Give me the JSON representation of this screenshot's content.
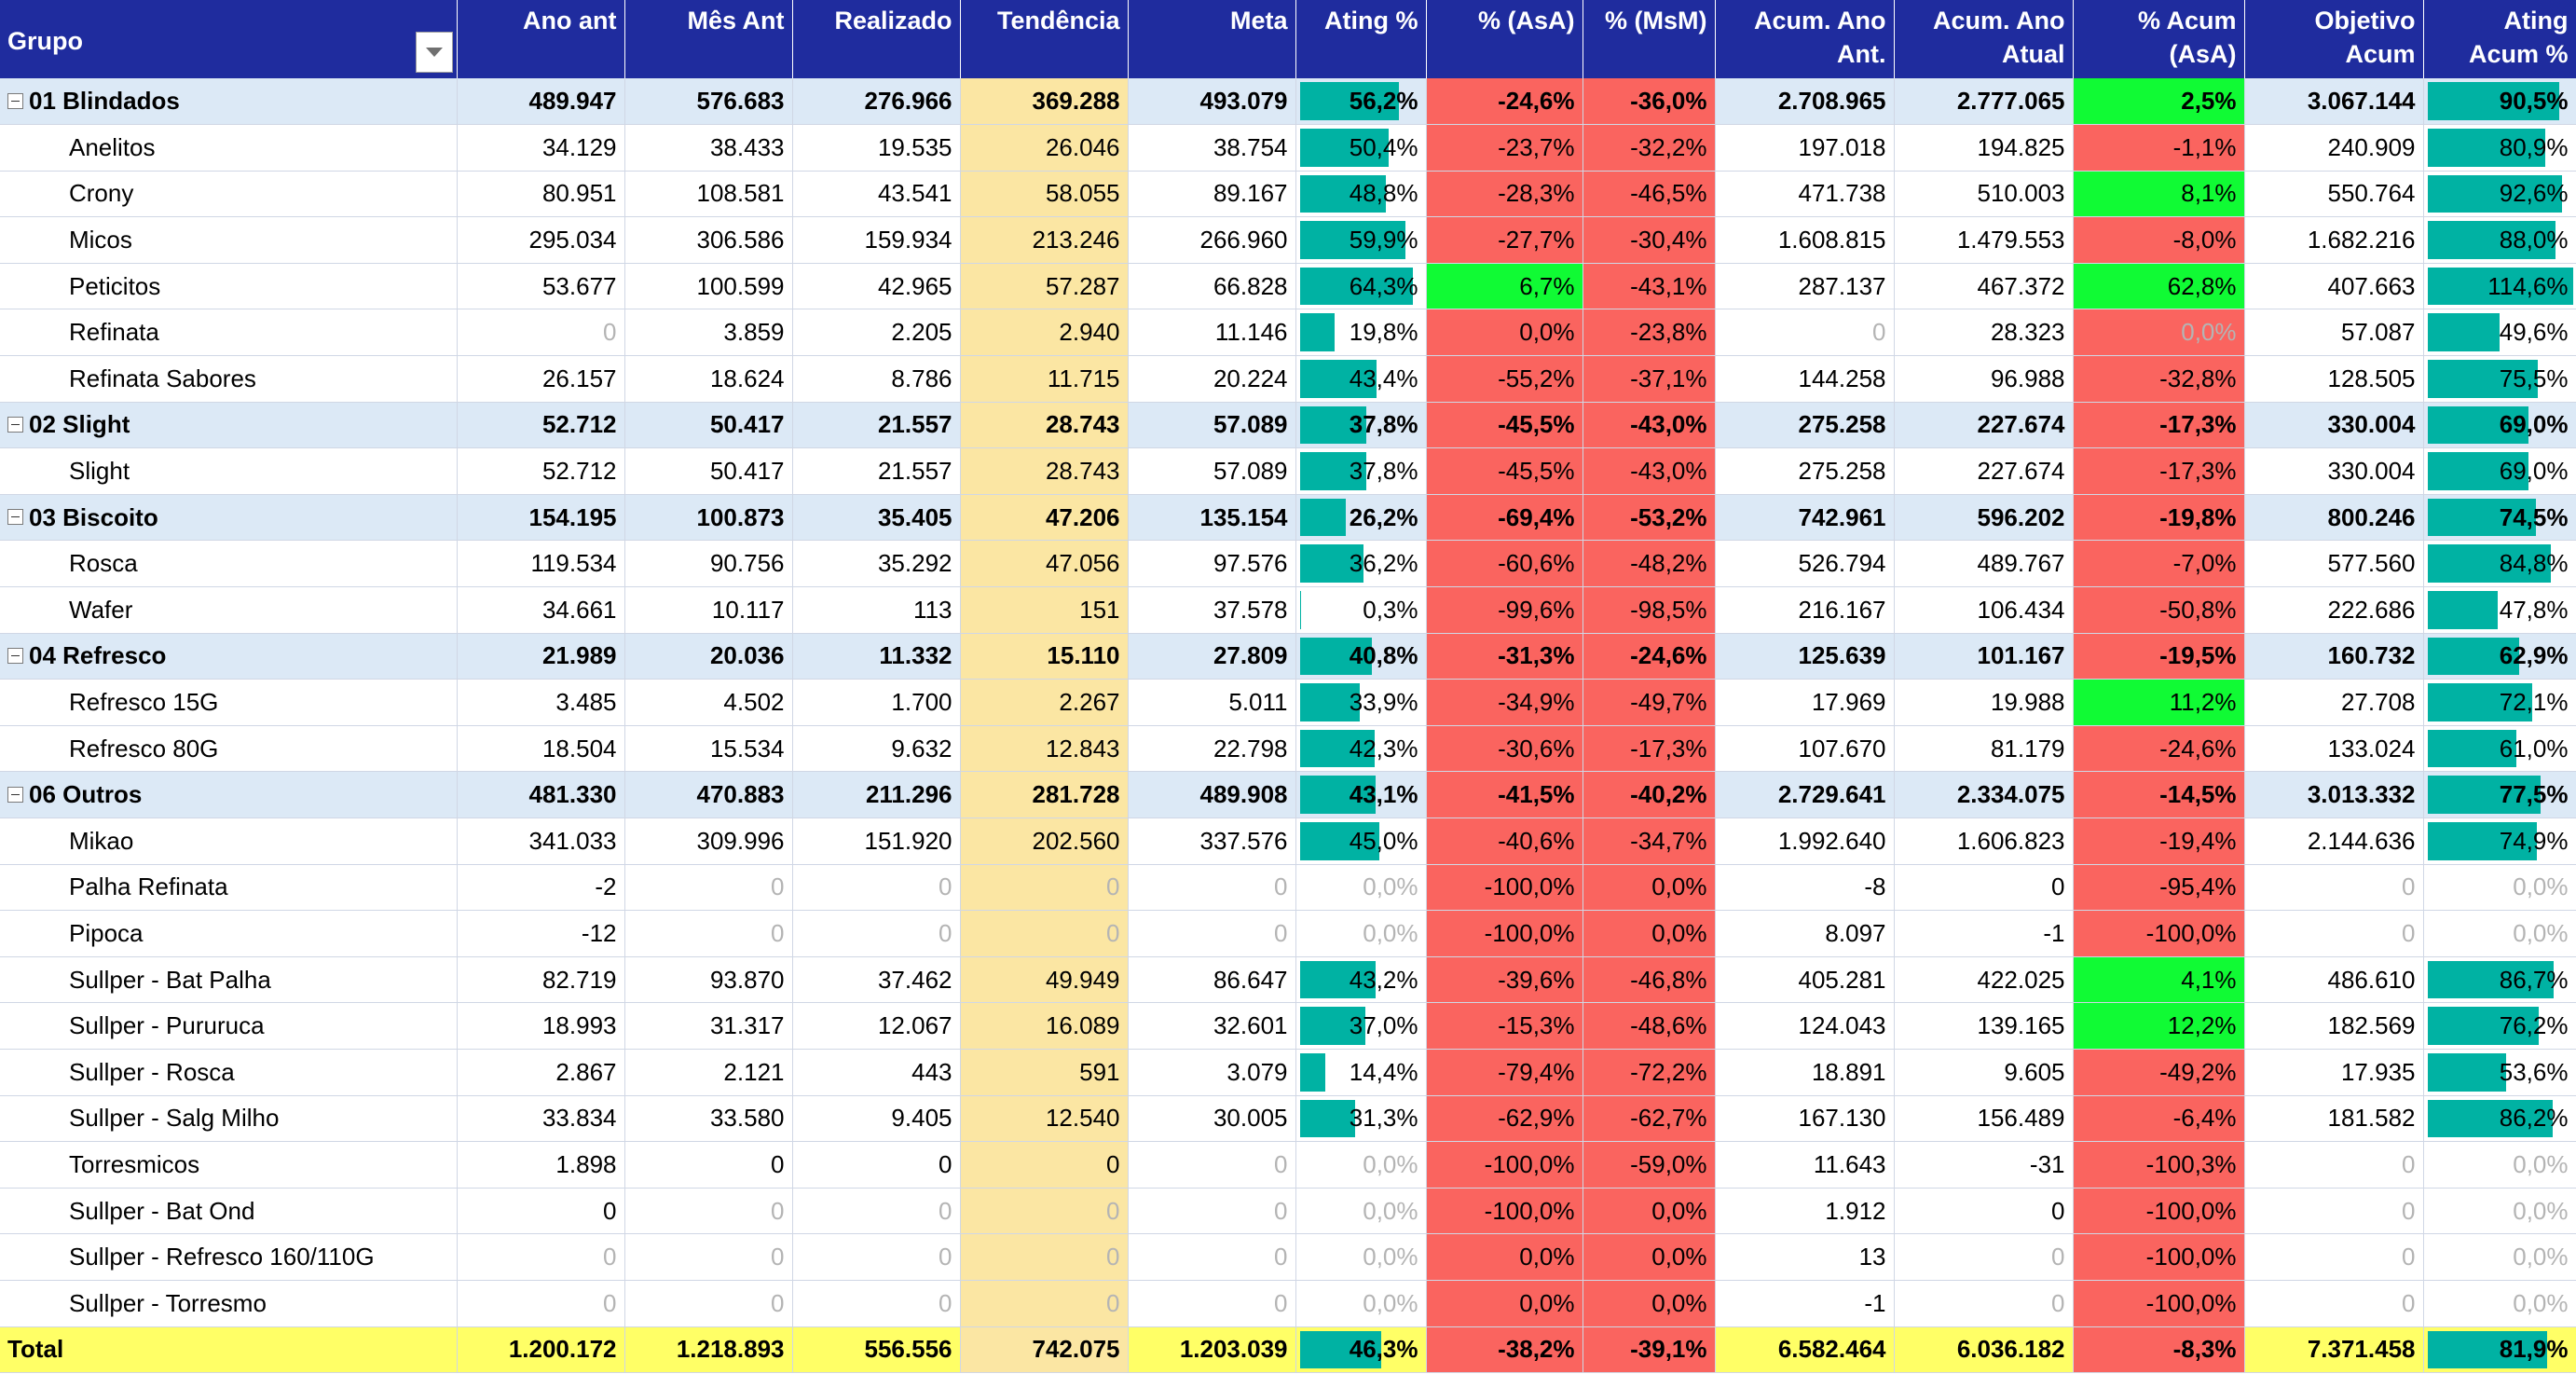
{
  "headers": {
    "grupo": "Grupo",
    "ano_ant": "Ano ant",
    "mes_ant": "Mês Ant",
    "realizado": "Realizado",
    "tendencia": "Tendência",
    "meta": "Meta",
    "ating": "Ating %",
    "asa": "% (AsA)",
    "msm": "% (MsM)",
    "acum_ano_ant": "Acum. Ano Ant.",
    "acum_ano_atual": "Acum. Ano Atual",
    "acum_asa": "% Acum (AsA)",
    "objetivo_acum": "Objetivo Acum",
    "ating_acum": "Ating Acum %"
  },
  "colors": {
    "header_bg": "#1f2c9e",
    "group_row_bg": "#dce9f6",
    "trend_bg": "#fbe6a3",
    "negative_bg": "#fa645f",
    "positive_bg": "#10fb34",
    "bar_fill": "#00b2a3",
    "total_bg": "#ffff66"
  },
  "icons": {
    "filter": "filter-dropdown-icon",
    "collapse": "collapse-minus-icon"
  },
  "rows": [
    {
      "type": "group",
      "name": "01 Blindados",
      "ano_ant": "489.947",
      "mes_ant": "576.683",
      "realizado": "276.966",
      "tendencia": "369.288",
      "meta": "493.079",
      "ating": "56,2%",
      "ating_level": 0.562,
      "asa": "-24,6%",
      "asa_color": "red",
      "msm": "-36,0%",
      "msm_color": "red",
      "acum_ano_ant": "2.708.965",
      "acum_ano_atual": "2.777.065",
      "acum_asa": "2,5%",
      "acum_asa_color": "green",
      "objetivo_acum": "3.067.144",
      "ating_acum": "90,5%",
      "ating_acum_level": 0.905
    },
    {
      "type": "item",
      "name": "Anelitos",
      "ano_ant": "34.129",
      "mes_ant": "38.433",
      "realizado": "19.535",
      "tendencia": "26.046",
      "meta": "38.754",
      "ating": "50,4%",
      "ating_level": 0.504,
      "asa": "-23,7%",
      "asa_color": "red",
      "msm": "-32,2%",
      "msm_color": "red",
      "acum_ano_ant": "197.018",
      "acum_ano_atual": "194.825",
      "acum_asa": "-1,1%",
      "acum_asa_color": "red",
      "objetivo_acum": "240.909",
      "ating_acum": "80,9%",
      "ating_acum_level": 0.809
    },
    {
      "type": "item",
      "name": "Crony",
      "ano_ant": "80.951",
      "mes_ant": "108.581",
      "realizado": "43.541",
      "tendencia": "58.055",
      "meta": "89.167",
      "ating": "48,8%",
      "ating_level": 0.488,
      "asa": "-28,3%",
      "asa_color": "red",
      "msm": "-46,5%",
      "msm_color": "red",
      "acum_ano_ant": "471.738",
      "acum_ano_atual": "510.003",
      "acum_asa": "8,1%",
      "acum_asa_color": "green",
      "objetivo_acum": "550.764",
      "ating_acum": "92,6%",
      "ating_acum_level": 0.926
    },
    {
      "type": "item",
      "name": "Micos",
      "ano_ant": "295.034",
      "mes_ant": "306.586",
      "realizado": "159.934",
      "tendencia": "213.246",
      "meta": "266.960",
      "ating": "59,9%",
      "ating_level": 0.599,
      "asa": "-27,7%",
      "asa_color": "red",
      "msm": "-30,4%",
      "msm_color": "red",
      "acum_ano_ant": "1.608.815",
      "acum_ano_atual": "1.479.553",
      "acum_asa": "-8,0%",
      "acum_asa_color": "red",
      "objetivo_acum": "1.682.216",
      "ating_acum": "88,0%",
      "ating_acum_level": 0.88
    },
    {
      "type": "item",
      "name": "Peticitos",
      "ano_ant": "53.677",
      "mes_ant": "100.599",
      "realizado": "42.965",
      "tendencia": "57.287",
      "meta": "66.828",
      "ating": "64,3%",
      "ating_level": 0.643,
      "asa": "6,7%",
      "asa_color": "green",
      "msm": "-43,1%",
      "msm_color": "red",
      "acum_ano_ant": "287.137",
      "acum_ano_atual": "467.372",
      "acum_asa": "62,8%",
      "acum_asa_color": "green",
      "objetivo_acum": "407.663",
      "ating_acum": "114,6%",
      "ating_acum_level": 1.146
    },
    {
      "type": "item",
      "name": "Refinata",
      "ano_ant": "0",
      "ano_ant_muted": true,
      "mes_ant": "3.859",
      "realizado": "2.205",
      "tendencia": "2.940",
      "meta": "11.146",
      "ating": "19,8%",
      "ating_level": 0.198,
      "asa": "0,0%",
      "asa_color": "red",
      "msm": "-23,8%",
      "msm_color": "red",
      "acum_ano_ant": "0",
      "acum_ano_ant_muted": true,
      "acum_ano_atual": "28.323",
      "acum_asa": "0,0%",
      "acum_asa_color": "red",
      "acum_asa_muted": true,
      "objetivo_acum": "57.087",
      "ating_acum": "49,6%",
      "ating_acum_level": 0.496
    },
    {
      "type": "item",
      "name": "Refinata Sabores",
      "ano_ant": "26.157",
      "mes_ant": "18.624",
      "realizado": "8.786",
      "tendencia": "11.715",
      "meta": "20.224",
      "ating": "43,4%",
      "ating_level": 0.434,
      "asa": "-55,2%",
      "asa_color": "red",
      "msm": "-37,1%",
      "msm_color": "red",
      "acum_ano_ant": "144.258",
      "acum_ano_atual": "96.988",
      "acum_asa": "-32,8%",
      "acum_asa_color": "red",
      "objetivo_acum": "128.505",
      "ating_acum": "75,5%",
      "ating_acum_level": 0.755
    },
    {
      "type": "group",
      "name": "02 Slight",
      "ano_ant": "52.712",
      "mes_ant": "50.417",
      "realizado": "21.557",
      "tendencia": "28.743",
      "meta": "57.089",
      "ating": "37,8%",
      "ating_level": 0.378,
      "asa": "-45,5%",
      "asa_color": "red",
      "msm": "-43,0%",
      "msm_color": "red",
      "acum_ano_ant": "275.258",
      "acum_ano_atual": "227.674",
      "acum_asa": "-17,3%",
      "acum_asa_color": "red",
      "objetivo_acum": "330.004",
      "ating_acum": "69,0%",
      "ating_acum_level": 0.69
    },
    {
      "type": "item",
      "name": "Slight",
      "ano_ant": "52.712",
      "mes_ant": "50.417",
      "realizado": "21.557",
      "tendencia": "28.743",
      "meta": "57.089",
      "ating": "37,8%",
      "ating_level": 0.378,
      "asa": "-45,5%",
      "asa_color": "red",
      "msm": "-43,0%",
      "msm_color": "red",
      "acum_ano_ant": "275.258",
      "acum_ano_atual": "227.674",
      "acum_asa": "-17,3%",
      "acum_asa_color": "red",
      "objetivo_acum": "330.004",
      "ating_acum": "69,0%",
      "ating_acum_level": 0.69
    },
    {
      "type": "group",
      "name": "03 Biscoito",
      "ano_ant": "154.195",
      "mes_ant": "100.873",
      "realizado": "35.405",
      "tendencia": "47.206",
      "meta": "135.154",
      "ating": "26,2%",
      "ating_level": 0.262,
      "asa": "-69,4%",
      "asa_color": "red",
      "msm": "-53,2%",
      "msm_color": "red",
      "acum_ano_ant": "742.961",
      "acum_ano_atual": "596.202",
      "acum_asa": "-19,8%",
      "acum_asa_color": "red",
      "objetivo_acum": "800.246",
      "ating_acum": "74,5%",
      "ating_acum_level": 0.745
    },
    {
      "type": "item",
      "name": "Rosca",
      "ano_ant": "119.534",
      "mes_ant": "90.756",
      "realizado": "35.292",
      "tendencia": "47.056",
      "meta": "97.576",
      "ating": "36,2%",
      "ating_level": 0.362,
      "asa": "-60,6%",
      "asa_color": "red",
      "msm": "-48,2%",
      "msm_color": "red",
      "acum_ano_ant": "526.794",
      "acum_ano_atual": "489.767",
      "acum_asa": "-7,0%",
      "acum_asa_color": "red",
      "objetivo_acum": "577.560",
      "ating_acum": "84,8%",
      "ating_acum_level": 0.848
    },
    {
      "type": "item",
      "name": "Wafer",
      "ano_ant": "34.661",
      "mes_ant": "10.117",
      "realizado": "113",
      "tendencia": "151",
      "meta": "37.578",
      "ating": "0,3%",
      "ating_level": 0.003,
      "asa": "-99,6%",
      "asa_color": "red",
      "msm": "-98,5%",
      "msm_color": "red",
      "acum_ano_ant": "216.167",
      "acum_ano_atual": "106.434",
      "acum_asa": "-50,8%",
      "acum_asa_color": "red",
      "objetivo_acum": "222.686",
      "ating_acum": "47,8%",
      "ating_acum_level": 0.478
    },
    {
      "type": "group",
      "name": "04 Refresco",
      "ano_ant": "21.989",
      "mes_ant": "20.036",
      "realizado": "11.332",
      "tendencia": "15.110",
      "meta": "27.809",
      "ating": "40,8%",
      "ating_level": 0.408,
      "asa": "-31,3%",
      "asa_color": "red",
      "msm": "-24,6%",
      "msm_color": "red",
      "acum_ano_ant": "125.639",
      "acum_ano_atual": "101.167",
      "acum_asa": "-19,5%",
      "acum_asa_color": "red",
      "objetivo_acum": "160.732",
      "ating_acum": "62,9%",
      "ating_acum_level": 0.629
    },
    {
      "type": "item",
      "name": "Refresco 15G",
      "ano_ant": "3.485",
      "mes_ant": "4.502",
      "realizado": "1.700",
      "tendencia": "2.267",
      "meta": "5.011",
      "ating": "33,9%",
      "ating_level": 0.339,
      "asa": "-34,9%",
      "asa_color": "red",
      "msm": "-49,7%",
      "msm_color": "red",
      "acum_ano_ant": "17.969",
      "acum_ano_atual": "19.988",
      "acum_asa": "11,2%",
      "acum_asa_color": "green",
      "objetivo_acum": "27.708",
      "ating_acum": "72,1%",
      "ating_acum_level": 0.721
    },
    {
      "type": "item",
      "name": "Refresco 80G",
      "ano_ant": "18.504",
      "mes_ant": "15.534",
      "realizado": "9.632",
      "tendencia": "12.843",
      "meta": "22.798",
      "ating": "42,3%",
      "ating_level": 0.423,
      "asa": "-30,6%",
      "asa_color": "red",
      "msm": "-17,3%",
      "msm_color": "red",
      "acum_ano_ant": "107.670",
      "acum_ano_atual": "81.179",
      "acum_asa": "-24,6%",
      "acum_asa_color": "red",
      "objetivo_acum": "133.024",
      "ating_acum": "61,0%",
      "ating_acum_level": 0.61
    },
    {
      "type": "group",
      "name": "06 Outros",
      "ano_ant": "481.330",
      "mes_ant": "470.883",
      "realizado": "211.296",
      "tendencia": "281.728",
      "meta": "489.908",
      "ating": "43,1%",
      "ating_level": 0.431,
      "asa": "-41,5%",
      "asa_color": "red",
      "msm": "-40,2%",
      "msm_color": "red",
      "acum_ano_ant": "2.729.641",
      "acum_ano_atual": "2.334.075",
      "acum_asa": "-14,5%",
      "acum_asa_color": "red",
      "objetivo_acum": "3.013.332",
      "ating_acum": "77,5%",
      "ating_acum_level": 0.775
    },
    {
      "type": "item",
      "name": "Mikao",
      "ano_ant": "341.033",
      "mes_ant": "309.996",
      "realizado": "151.920",
      "tendencia": "202.560",
      "meta": "337.576",
      "ating": "45,0%",
      "ating_level": 0.45,
      "asa": "-40,6%",
      "asa_color": "red",
      "msm": "-34,7%",
      "msm_color": "red",
      "acum_ano_ant": "1.992.640",
      "acum_ano_atual": "1.606.823",
      "acum_asa": "-19,4%",
      "acum_asa_color": "red",
      "objetivo_acum": "2.144.636",
      "ating_acum": "74,9%",
      "ating_acum_level": 0.749
    },
    {
      "type": "item",
      "name": "Palha Refinata",
      "ano_ant": "-2",
      "mes_ant": "0",
      "mes_ant_muted": true,
      "realizado": "0",
      "realizado_muted": true,
      "tendencia": "0",
      "tendencia_muted": true,
      "meta": "0",
      "meta_muted": true,
      "ating": "0,0%",
      "ating_level": 0,
      "ating_muted": true,
      "asa": "-100,0%",
      "asa_color": "red",
      "msm": "0,0%",
      "msm_color": "red",
      "acum_ano_ant": "-8",
      "acum_ano_atual": "0",
      "acum_asa": "-95,4%",
      "acum_asa_color": "red",
      "objetivo_acum": "0",
      "objetivo_acum_muted": true,
      "ating_acum": "0,0%",
      "ating_acum_level": 0,
      "ating_acum_muted": true
    },
    {
      "type": "item",
      "name": "Pipoca",
      "ano_ant": "-12",
      "mes_ant": "0",
      "mes_ant_muted": true,
      "realizado": "0",
      "realizado_muted": true,
      "tendencia": "0",
      "tendencia_muted": true,
      "meta": "0",
      "meta_muted": true,
      "ating": "0,0%",
      "ating_level": 0,
      "ating_muted": true,
      "asa": "-100,0%",
      "asa_color": "red",
      "msm": "0,0%",
      "msm_color": "red",
      "acum_ano_ant": "8.097",
      "acum_ano_atual": "-1",
      "acum_asa": "-100,0%",
      "acum_asa_color": "red",
      "objetivo_acum": "0",
      "objetivo_acum_muted": true,
      "ating_acum": "0,0%",
      "ating_acum_level": 0,
      "ating_acum_muted": true
    },
    {
      "type": "item",
      "name": "Sullper - Bat Palha",
      "ano_ant": "82.719",
      "mes_ant": "93.870",
      "realizado": "37.462",
      "tendencia": "49.949",
      "meta": "86.647",
      "ating": "43,2%",
      "ating_level": 0.432,
      "asa": "-39,6%",
      "asa_color": "red",
      "msm": "-46,8%",
      "msm_color": "red",
      "acum_ano_ant": "405.281",
      "acum_ano_atual": "422.025",
      "acum_asa": "4,1%",
      "acum_asa_color": "green",
      "objetivo_acum": "486.610",
      "ating_acum": "86,7%",
      "ating_acum_level": 0.867
    },
    {
      "type": "item",
      "name": "Sullper - Pururuca",
      "ano_ant": "18.993",
      "mes_ant": "31.317",
      "realizado": "12.067",
      "tendencia": "16.089",
      "meta": "32.601",
      "ating": "37,0%",
      "ating_level": 0.37,
      "asa": "-15,3%",
      "asa_color": "red",
      "msm": "-48,6%",
      "msm_color": "red",
      "acum_ano_ant": "124.043",
      "acum_ano_atual": "139.165",
      "acum_asa": "12,2%",
      "acum_asa_color": "green",
      "objetivo_acum": "182.569",
      "ating_acum": "76,2%",
      "ating_acum_level": 0.762
    },
    {
      "type": "item",
      "name": "Sullper - Rosca",
      "ano_ant": "2.867",
      "mes_ant": "2.121",
      "realizado": "443",
      "tendencia": "591",
      "meta": "3.079",
      "ating": "14,4%",
      "ating_level": 0.144,
      "asa": "-79,4%",
      "asa_color": "red",
      "msm": "-72,2%",
      "msm_color": "red",
      "acum_ano_ant": "18.891",
      "acum_ano_atual": "9.605",
      "acum_asa": "-49,2%",
      "acum_asa_color": "red",
      "objetivo_acum": "17.935",
      "ating_acum": "53,6%",
      "ating_acum_level": 0.536
    },
    {
      "type": "item",
      "name": "Sullper - Salg Milho",
      "ano_ant": "33.834",
      "mes_ant": "33.580",
      "realizado": "9.405",
      "tendencia": "12.540",
      "meta": "30.005",
      "ating": "31,3%",
      "ating_level": 0.313,
      "asa": "-62,9%",
      "asa_color": "red",
      "msm": "-62,7%",
      "msm_color": "red",
      "acum_ano_ant": "167.130",
      "acum_ano_atual": "156.489",
      "acum_asa": "-6,4%",
      "acum_asa_color": "red",
      "objetivo_acum": "181.582",
      "ating_acum": "86,2%",
      "ating_acum_level": 0.862
    },
    {
      "type": "item",
      "name": "Torresmicos",
      "ano_ant": "1.898",
      "mes_ant": "0",
      "realizado": "0",
      "tendencia": "0",
      "meta": "0",
      "meta_muted": true,
      "ating": "0,0%",
      "ating_level": 0,
      "ating_muted": true,
      "asa": "-100,0%",
      "asa_color": "red",
      "msm": "-59,0%",
      "msm_color": "red",
      "acum_ano_ant": "11.643",
      "acum_ano_atual": "-31",
      "acum_asa": "-100,3%",
      "acum_asa_color": "red",
      "objetivo_acum": "0",
      "objetivo_acum_muted": true,
      "ating_acum": "0,0%",
      "ating_acum_level": 0,
      "ating_acum_muted": true
    },
    {
      "type": "item",
      "name": "Sullper - Bat Ond",
      "ano_ant": "0",
      "mes_ant": "0",
      "mes_ant_muted": true,
      "realizado": "0",
      "realizado_muted": true,
      "tendencia": "0",
      "tendencia_muted": true,
      "meta": "0",
      "meta_muted": true,
      "ating": "0,0%",
      "ating_level": 0,
      "ating_muted": true,
      "asa": "-100,0%",
      "asa_color": "red",
      "msm": "0,0%",
      "msm_color": "red",
      "acum_ano_ant": "1.912",
      "acum_ano_atual": "0",
      "acum_asa": "-100,0%",
      "acum_asa_color": "red",
      "objetivo_acum": "0",
      "objetivo_acum_muted": true,
      "ating_acum": "0,0%",
      "ating_acum_level": 0,
      "ating_acum_muted": true
    },
    {
      "type": "item",
      "name": "Sullper - Refresco 160/110G",
      "ano_ant": "0",
      "ano_ant_muted": true,
      "mes_ant": "0",
      "mes_ant_muted": true,
      "realizado": "0",
      "realizado_muted": true,
      "tendencia": "0",
      "tendencia_muted": true,
      "meta": "0",
      "meta_muted": true,
      "ating": "0,0%",
      "ating_level": 0,
      "ating_muted": true,
      "asa": "0,0%",
      "asa_color": "red",
      "msm": "0,0%",
      "msm_color": "red",
      "acum_ano_ant": "13",
      "acum_ano_atual": "0",
      "acum_ano_atual_muted": true,
      "acum_asa": "-100,0%",
      "acum_asa_color": "red",
      "objetivo_acum": "0",
      "objetivo_acum_muted": true,
      "ating_acum": "0,0%",
      "ating_acum_level": 0,
      "ating_acum_muted": true
    },
    {
      "type": "item",
      "name": "Sullper - Torresmo",
      "ano_ant": "0",
      "ano_ant_muted": true,
      "mes_ant": "0",
      "mes_ant_muted": true,
      "realizado": "0",
      "realizado_muted": true,
      "tendencia": "0",
      "tendencia_muted": true,
      "meta": "0",
      "meta_muted": true,
      "ating": "0,0%",
      "ating_level": 0,
      "ating_muted": true,
      "asa": "0,0%",
      "asa_color": "red",
      "msm": "0,0%",
      "msm_color": "red",
      "acum_ano_ant": "-1",
      "acum_ano_atual": "0",
      "acum_ano_atual_muted": true,
      "acum_asa": "-100,0%",
      "acum_asa_color": "red",
      "objetivo_acum": "0",
      "objetivo_acum_muted": true,
      "ating_acum": "0,0%",
      "ating_acum_level": 0,
      "ating_acum_muted": true
    },
    {
      "type": "total",
      "name": "Total",
      "ano_ant": "1.200.172",
      "mes_ant": "1.218.893",
      "realizado": "556.556",
      "tendencia": "742.075",
      "meta": "1.203.039",
      "ating": "46,3%",
      "ating_level": 0.463,
      "asa": "-38,2%",
      "asa_color": "red",
      "msm": "-39,1%",
      "msm_color": "red",
      "acum_ano_ant": "6.582.464",
      "acum_ano_atual": "6.036.182",
      "acum_asa": "-8,3%",
      "acum_asa_color": "red",
      "objetivo_acum": "7.371.458",
      "ating_acum": "81,9%",
      "ating_acum_level": 0.819
    }
  ]
}
